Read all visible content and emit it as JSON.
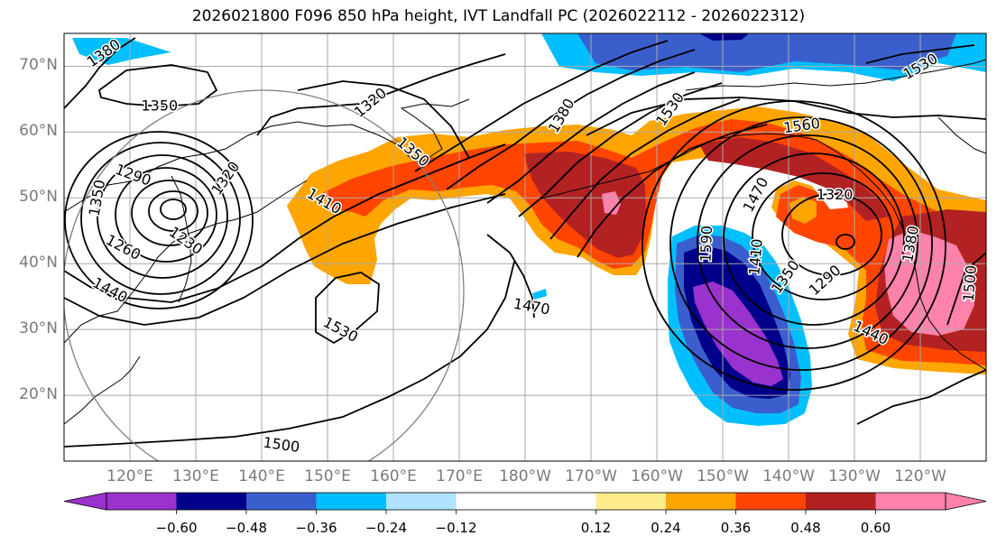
{
  "title": "2026021800 F096 850 hPa height, IVT Landfall PC (2026022112 - 2026022312)",
  "map": {
    "projection": "PlateCarree",
    "extent_lon_east": [
      110,
      250
    ],
    "extent_lat": [
      10,
      75
    ],
    "lat_ticks": [
      {
        "lat": 70,
        "label": "70°N"
      },
      {
        "lat": 60,
        "label": "60°N"
      },
      {
        "lat": 50,
        "label": "50°N"
      },
      {
        "lat": 40,
        "label": "40°N"
      },
      {
        "lat": 30,
        "label": "30°N"
      },
      {
        "lat": 20,
        "label": "20°N"
      }
    ],
    "lon_ticks": [
      {
        "lon": 120,
        "label": "120°E"
      },
      {
        "lon": 130,
        "label": "130°E"
      },
      {
        "lon": 140,
        "label": "140°E"
      },
      {
        "lon": 150,
        "label": "150°E"
      },
      {
        "lon": 160,
        "label": "160°E"
      },
      {
        "lon": 170,
        "label": "170°E"
      },
      {
        "lon": 180,
        "label": "180°W"
      },
      {
        "lon": 190,
        "label": "170°W"
      },
      {
        "lon": 200,
        "label": "160°W"
      },
      {
        "lon": 210,
        "label": "150°W"
      },
      {
        "lon": 220,
        "label": "140°W"
      },
      {
        "lon": 230,
        "label": "130°W"
      },
      {
        "lon": 240,
        "label": "120°W"
      }
    ],
    "contour_labels": [
      {
        "text": "1380",
        "lon": 116,
        "lat": 72,
        "rot": -35
      },
      {
        "text": "1350",
        "lon": 124.5,
        "lat": 64,
        "rot": 0
      },
      {
        "text": "1320",
        "lon": 156.5,
        "lat": 64.5,
        "rot": -40
      },
      {
        "text": "1290",
        "lon": 120.5,
        "lat": 53.5,
        "rot": 20
      },
      {
        "text": "1320",
        "lon": 134.5,
        "lat": 53,
        "rot": -55
      },
      {
        "text": "1350",
        "lon": 115,
        "lat": 50,
        "rot": -80
      },
      {
        "text": "1260",
        "lon": 119,
        "lat": 42.5,
        "rot": 28
      },
      {
        "text": "1230",
        "lon": 128.5,
        "lat": 43.5,
        "rot": 35
      },
      {
        "text": "1440",
        "lon": 117,
        "lat": 36,
        "rot": 28
      },
      {
        "text": "1410",
        "lon": 149.5,
        "lat": 49.5,
        "rot": 30
      },
      {
        "text": "1350",
        "lon": 163,
        "lat": 57,
        "rot": 40
      },
      {
        "text": "1380",
        "lon": 185.5,
        "lat": 62.5,
        "rot": -60
      },
      {
        "text": "1530",
        "lon": 202,
        "lat": 63.5,
        "rot": -55
      },
      {
        "text": "1560",
        "lon": 222,
        "lat": 61,
        "rot": -8
      },
      {
        "text": "1530",
        "lon": 240,
        "lat": 70,
        "rot": -30
      },
      {
        "text": "1470",
        "lon": 181,
        "lat": 33.5,
        "rot": 10
      },
      {
        "text": "1530",
        "lon": 152,
        "lat": 30,
        "rot": 28
      },
      {
        "text": "1500",
        "lon": 143,
        "lat": 12.5,
        "rot": 8
      },
      {
        "text": "1590",
        "lon": 207.5,
        "lat": 43,
        "rot": -88
      },
      {
        "text": "1470",
        "lon": 215,
        "lat": 50.5,
        "rot": -62
      },
      {
        "text": "1410",
        "lon": 215,
        "lat": 41,
        "rot": -85
      },
      {
        "text": "1350",
        "lon": 219.5,
        "lat": 38,
        "rot": -55
      },
      {
        "text": "1320",
        "lon": 227,
        "lat": 50.5,
        "rot": 0
      },
      {
        "text": "1290",
        "lon": 225.5,
        "lat": 37.5,
        "rot": -42
      },
      {
        "text": "1440",
        "lon": 232.5,
        "lat": 29.5,
        "rot": 25
      },
      {
        "text": "1380",
        "lon": 238.5,
        "lat": 43,
        "rot": -80
      },
      {
        "text": "1500",
        "lon": 247.5,
        "lat": 37,
        "rot": -85
      }
    ]
  },
  "colorbar": {
    "bounds": [
      -0.72,
      -0.6,
      -0.48,
      -0.36,
      -0.24,
      -0.12,
      0.12,
      0.24,
      0.36,
      0.48,
      0.6,
      0.72
    ],
    "colors": [
      "#9a32cd",
      "#00008b",
      "#3a5fcd",
      "#00bfff",
      "#b0e2ff",
      "#ffffff",
      "#ffec8b",
      "#ffa500",
      "#ff4500",
      "#b22222",
      "#ff82ab"
    ],
    "extend_min_color": "#9a32cd",
    "extend_max_color": "#ff82ab",
    "tick_labels": [
      "−0.60",
      "−0.48",
      "−0.36",
      "−0.24",
      "−0.12",
      "0.12",
      "0.24",
      "0.36",
      "0.48",
      "0.60"
    ]
  },
  "theme": {
    "grid_color": "#a9a9a9",
    "tick_label_color": "#7a7a7a",
    "contour_color": "#000000",
    "circle_color": "#808080"
  }
}
